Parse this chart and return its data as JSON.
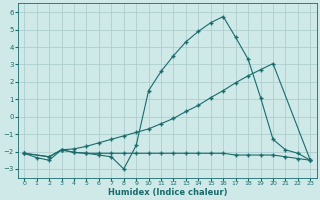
{
  "xlabel": "Humidex (Indice chaleur)",
  "xlim": [
    -0.5,
    23.5
  ],
  "ylim": [
    -3.5,
    6.5
  ],
  "xticks": [
    0,
    1,
    2,
    3,
    4,
    5,
    6,
    7,
    8,
    9,
    10,
    11,
    12,
    13,
    14,
    15,
    16,
    17,
    18,
    19,
    20,
    21,
    22,
    23
  ],
  "yticks": [
    -3,
    -2,
    -1,
    0,
    1,
    2,
    3,
    4,
    5,
    6
  ],
  "bg_color": "#cfe9e9",
  "line_color": "#1a6b6b",
  "grid_color": "#aecece",
  "line1_x": [
    0,
    1,
    2,
    3,
    4,
    5,
    6,
    7,
    8,
    9,
    10,
    11,
    12,
    13,
    14,
    15,
    16,
    17,
    18,
    19,
    20,
    21,
    22,
    23
  ],
  "line1_y": [
    -2.1,
    -2.35,
    -2.5,
    -1.9,
    -2.05,
    -2.1,
    -2.2,
    -2.3,
    -3.0,
    -1.65,
    1.5,
    2.6,
    3.5,
    4.3,
    4.9,
    5.4,
    5.75,
    4.55,
    3.3,
    1.1,
    -1.3,
    -1.9,
    -2.1,
    -2.5
  ],
  "line2_x": [
    0,
    2,
    3,
    4,
    5,
    6,
    7,
    8,
    9,
    10,
    11,
    12,
    13,
    14,
    15,
    16,
    17,
    18,
    19,
    20,
    23
  ],
  "line2_y": [
    -2.1,
    -2.3,
    -1.9,
    -1.85,
    -1.7,
    -1.5,
    -1.3,
    -1.1,
    -0.9,
    -0.7,
    -0.4,
    -0.1,
    0.3,
    0.65,
    1.1,
    1.5,
    1.95,
    2.35,
    2.7,
    3.05,
    -2.5
  ],
  "line3_x": [
    0,
    2,
    3,
    4,
    5,
    6,
    7,
    8,
    9,
    10,
    11,
    12,
    13,
    14,
    15,
    16,
    17,
    18,
    19,
    20,
    21,
    22,
    23
  ],
  "line3_y": [
    -2.1,
    -2.3,
    -1.9,
    -2.05,
    -2.1,
    -2.1,
    -2.1,
    -2.1,
    -2.1,
    -2.1,
    -2.1,
    -2.1,
    -2.1,
    -2.1,
    -2.1,
    -2.1,
    -2.2,
    -2.2,
    -2.2,
    -2.2,
    -2.3,
    -2.4,
    -2.5
  ]
}
